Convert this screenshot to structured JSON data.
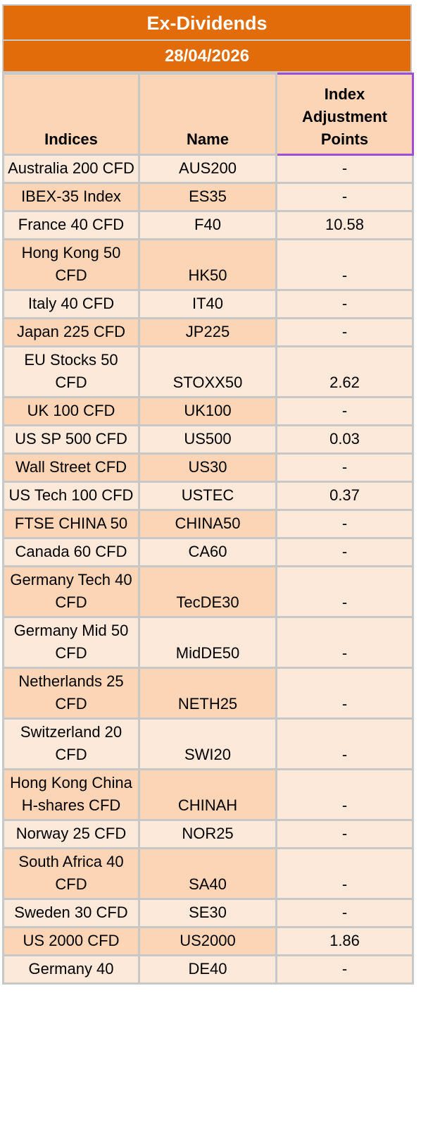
{
  "title": "Ex-Dividends",
  "date": "28/04/2026",
  "headers": {
    "indices": "Indices",
    "name": "Name",
    "adjustment": "Index Adjustment Points"
  },
  "rows": [
    {
      "index": "Australia 200 CFD",
      "name": "AUS200",
      "points": "-"
    },
    {
      "index": "IBEX-35 Index",
      "name": "ES35",
      "points": "-"
    },
    {
      "index": "France 40 CFD",
      "name": "F40",
      "points": "10.58"
    },
    {
      "index": "Hong Kong 50 CFD",
      "name": "HK50",
      "points": "-"
    },
    {
      "index": "Italy 40 CFD",
      "name": "IT40",
      "points": "-"
    },
    {
      "index": "Japan 225 CFD",
      "name": "JP225",
      "points": "-"
    },
    {
      "index": "EU Stocks 50 CFD",
      "name": "STOXX50",
      "points": "2.62"
    },
    {
      "index": "UK 100 CFD",
      "name": "UK100",
      "points": "-"
    },
    {
      "index": "US SP 500 CFD",
      "name": "US500",
      "points": "0.03"
    },
    {
      "index": "Wall Street CFD",
      "name": "US30",
      "points": "-"
    },
    {
      "index": "US Tech 100 CFD",
      "name": "USTEC",
      "points": "0.37"
    },
    {
      "index": "FTSE CHINA 50",
      "name": "CHINA50",
      "points": "-"
    },
    {
      "index": "Canada 60 CFD",
      "name": "CA60",
      "points": "-"
    },
    {
      "index": "Germany Tech 40 CFD",
      "name": "TecDE30",
      "points": "-"
    },
    {
      "index": "Germany Mid 50 CFD",
      "name": "MidDE50",
      "points": "-"
    },
    {
      "index": "Netherlands 25 CFD",
      "name": "NETH25",
      "points": "-"
    },
    {
      "index": "Switzerland 20 CFD",
      "name": "SWI20",
      "points": "-"
    },
    {
      "index": "Hong Kong China H-shares CFD",
      "name": "CHINAH",
      "points": "-"
    },
    {
      "index": "Norway 25 CFD",
      "name": "NOR25",
      "points": "-"
    },
    {
      "index": "South Africa 40 CFD",
      "name": "SA40",
      "points": "-"
    },
    {
      "index": "Sweden 30 CFD",
      "name": "SE30",
      "points": "-"
    },
    {
      "index": "US 2000 CFD",
      "name": "US2000",
      "points": "1.86"
    },
    {
      "index": "Germany 40",
      "name": "DE40",
      "points": "-"
    }
  ],
  "colors": {
    "banner": "#E36C0A",
    "row_light": "#FDE9D9",
    "row_dark": "#FBD5B5",
    "grid": "#C8C8C8",
    "highlight_border": "#9B4FD6"
  }
}
